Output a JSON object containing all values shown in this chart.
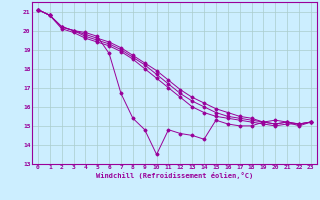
{
  "xlabel": "Windchill (Refroidissement éolien,°C)",
  "bg_color": "#cceeff",
  "grid_color": "#aacccc",
  "line_color": "#990099",
  "xlim": [
    -0.5,
    23.5
  ],
  "ylim": [
    13,
    21.5
  ],
  "yticks": [
    13,
    14,
    15,
    16,
    17,
    18,
    19,
    20,
    21
  ],
  "xticks": [
    0,
    1,
    2,
    3,
    4,
    5,
    6,
    7,
    8,
    9,
    10,
    11,
    12,
    13,
    14,
    15,
    16,
    17,
    18,
    19,
    20,
    21,
    22,
    23
  ],
  "line1_x": [
    0,
    1,
    2,
    3,
    4,
    5,
    6,
    7,
    8,
    9,
    10,
    11,
    12,
    13,
    14,
    15,
    16,
    17,
    18,
    19,
    20,
    21,
    22,
    23
  ],
  "line1_y": [
    21.1,
    20.8,
    20.2,
    20.0,
    19.9,
    19.7,
    18.8,
    16.7,
    15.4,
    14.8,
    13.5,
    14.8,
    14.6,
    14.5,
    14.3,
    15.3,
    15.1,
    15.0,
    15.0,
    15.2,
    15.3,
    15.2,
    15.0,
    15.2
  ],
  "line2_x": [
    0,
    1,
    2,
    3,
    4,
    5,
    6,
    7,
    8,
    9,
    10,
    11,
    12,
    13,
    14,
    15,
    16,
    17,
    18,
    19,
    20,
    21,
    22,
    23
  ],
  "line2_y": [
    21.1,
    20.8,
    20.1,
    19.9,
    19.6,
    19.4,
    19.2,
    18.9,
    18.5,
    18.0,
    17.5,
    17.0,
    16.5,
    16.0,
    15.7,
    15.5,
    15.4,
    15.3,
    15.2,
    15.1,
    15.0,
    15.1,
    15.1,
    15.2
  ],
  "line3_x": [
    0,
    1,
    2,
    3,
    4,
    5,
    6,
    7,
    8,
    9,
    10,
    11,
    12,
    13,
    14,
    15,
    16,
    17,
    18,
    19,
    20,
    21,
    22,
    23
  ],
  "line3_y": [
    21.1,
    20.8,
    20.2,
    20.0,
    19.7,
    19.5,
    19.3,
    19.0,
    18.6,
    18.2,
    17.7,
    17.2,
    16.7,
    16.3,
    16.0,
    15.7,
    15.5,
    15.4,
    15.3,
    15.2,
    15.1,
    15.2,
    15.1,
    15.2
  ],
  "line4_x": [
    0,
    1,
    2,
    3,
    4,
    5,
    6,
    7,
    8,
    9,
    10,
    11,
    12,
    13,
    14,
    15,
    16,
    17,
    18,
    19,
    20,
    21,
    22,
    23
  ],
  "line4_y": [
    21.1,
    20.8,
    20.2,
    20.0,
    19.8,
    19.6,
    19.4,
    19.1,
    18.7,
    18.3,
    17.9,
    17.4,
    16.9,
    16.5,
    16.2,
    15.9,
    15.7,
    15.5,
    15.4,
    15.2,
    15.1,
    15.2,
    15.1,
    15.2
  ]
}
